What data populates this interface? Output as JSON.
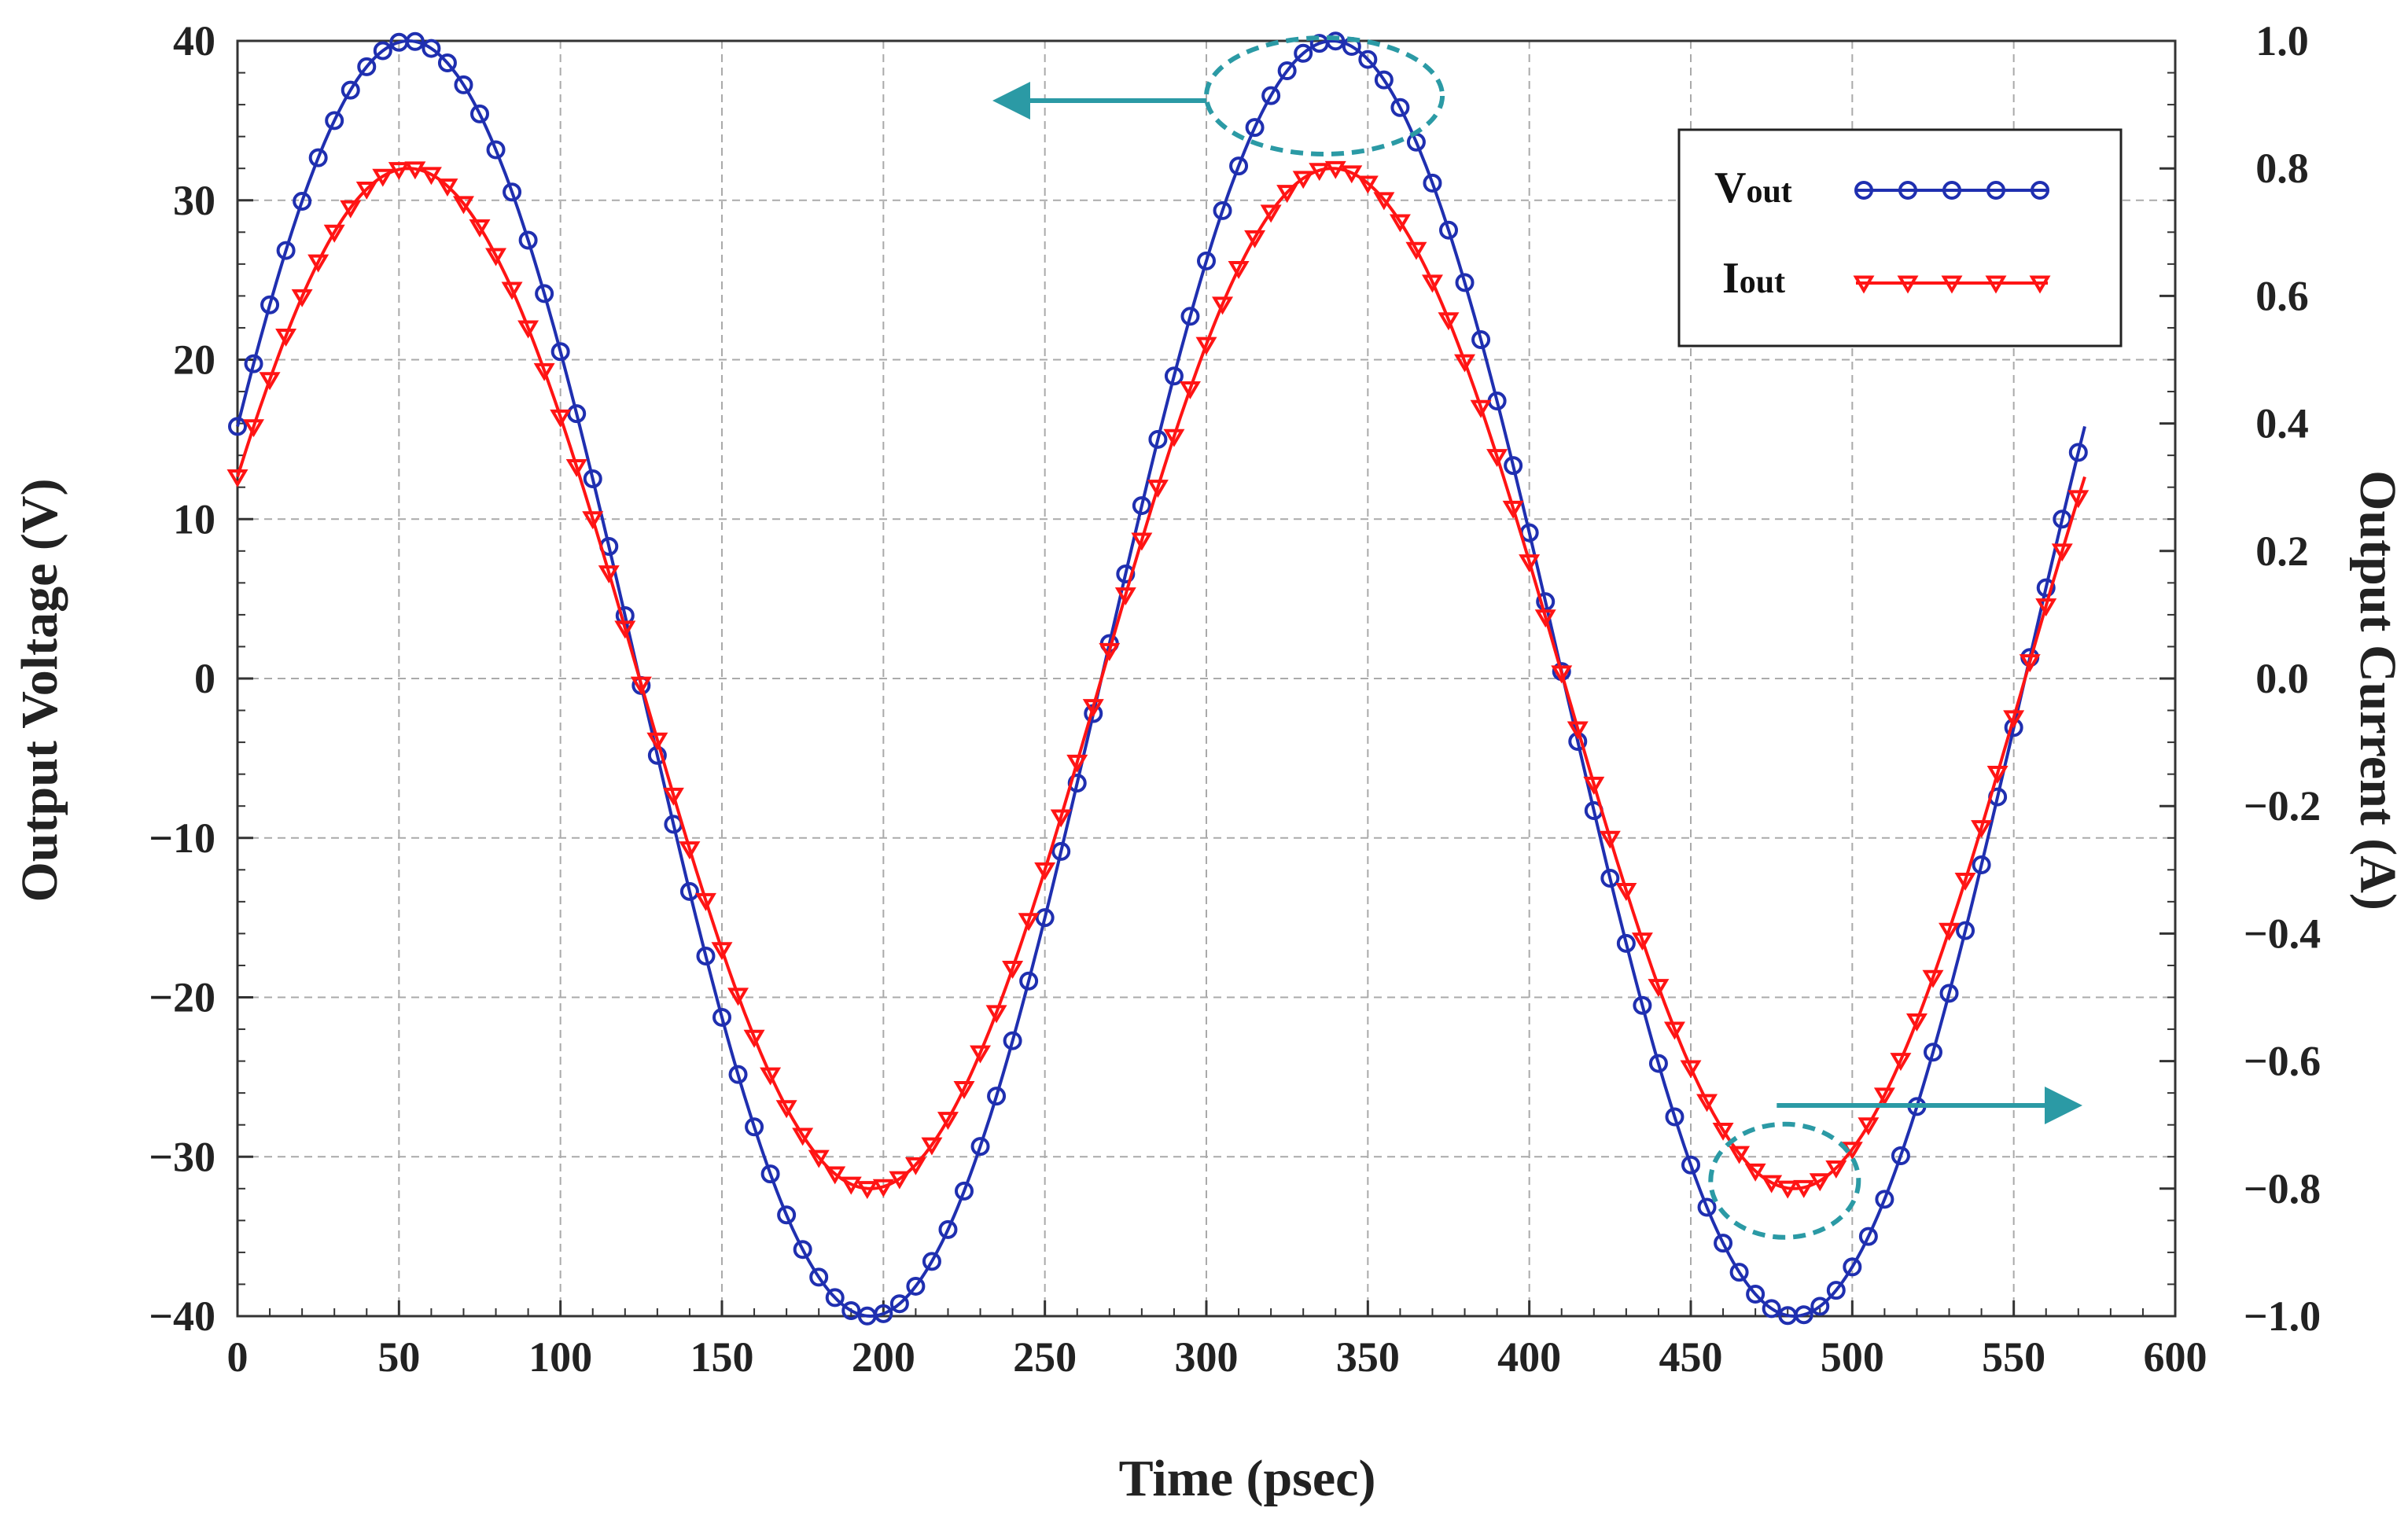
{
  "chart_data": {
    "type": "line",
    "x": {
      "label": "Time (psec)",
      "min": 0,
      "max": 600,
      "ticks": [
        0,
        50,
        100,
        150,
        200,
        250,
        300,
        350,
        400,
        450,
        500,
        550,
        600
      ],
      "tick_labels": [
        "0",
        "50",
        "100",
        "150",
        "200",
        "250",
        "300",
        "350",
        "400",
        "450",
        "500",
        "550",
        "600"
      ]
    },
    "y_left": {
      "label": "Output Voltage (V)",
      "min": -40,
      "max": 40,
      "ticks": [
        -40,
        -30,
        -20,
        -10,
        0,
        10,
        20,
        30,
        40
      ],
      "tick_labels": [
        "−40",
        "−30",
        "−20",
        "−10",
        "0",
        "10",
        "20",
        "30",
        "40"
      ]
    },
    "y_right": {
      "label": "Output Current (A)",
      "min": -1.0,
      "max": 1.0,
      "ticks": [
        -1.0,
        -0.8,
        -0.6,
        -0.4,
        -0.2,
        0.0,
        0.2,
        0.4,
        0.6,
        0.8,
        1.0
      ],
      "tick_labels": [
        "−1.0",
        "−0.8",
        "−0.6",
        "−0.4",
        "−0.2",
        "0.0",
        "0.2",
        "0.4",
        "0.6",
        "0.8",
        "1.0"
      ]
    },
    "grid": true,
    "legend_position": "top-right",
    "series": [
      {
        "name": "Vout",
        "label_main": "V",
        "label_sub": "out",
        "axis": "left",
        "marker": "circle",
        "color": "#1f2fb0",
        "amplitude": 40,
        "period": 286,
        "peak_time": 53,
        "t_start": 0,
        "t_end": 572,
        "sample_step": 5,
        "endpoint_values": {
          "t0": 16,
          "t_end": 16
        }
      },
      {
        "name": "Iout",
        "label_main": "I",
        "label_sub": "out",
        "axis": "right",
        "marker": "triangle-down",
        "color": "#ff1414",
        "amplitude": 0.8,
        "period": 286,
        "peak_time": 53,
        "t_start": 0,
        "t_end": 572,
        "sample_step": 5,
        "endpoint_values": {
          "t0": 0.32,
          "t_end": 0.32
        }
      }
    ],
    "annotations": [
      {
        "type": "ellipse",
        "target_series": "Vout",
        "near_x": 338,
        "near_y": 40,
        "arrow_direction": "left",
        "meaning": "Vout uses the left axis"
      },
      {
        "type": "ellipse",
        "target_series": "Iout",
        "near_x": 481,
        "near_y": -0.8,
        "arrow_direction": "right",
        "meaning": "Iout uses the right axis"
      }
    ],
    "annotation_color": "#2b9aa5"
  }
}
